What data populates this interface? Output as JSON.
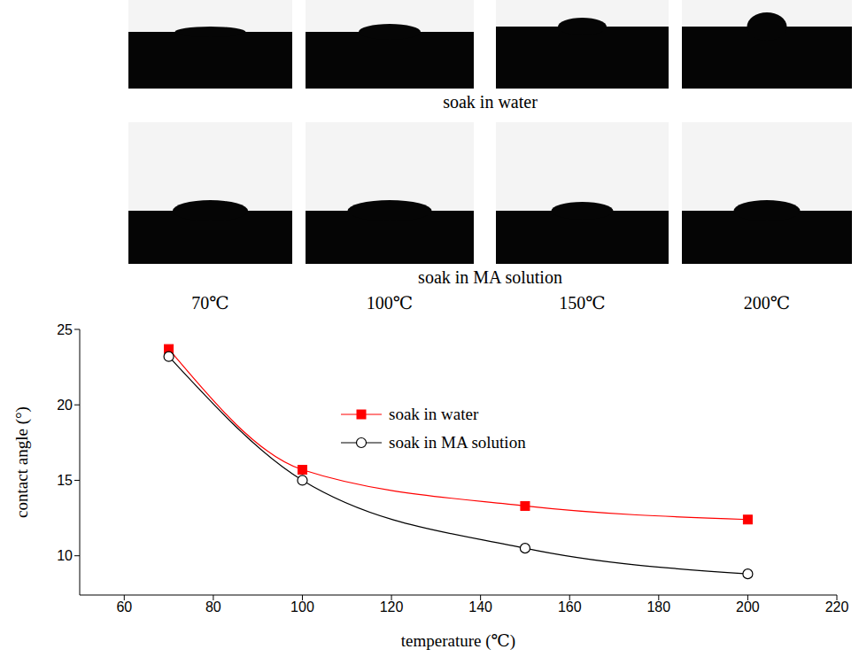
{
  "images": {
    "row_labels": [
      "soak in water",
      "soak in MA solution"
    ],
    "column_labels": [
      "70℃",
      "100℃",
      "150℃",
      "200℃"
    ]
  },
  "chart_data": {
    "type": "line",
    "x_label": "temperature (℃)",
    "y_label": "contact angle (°)",
    "x": [
      70,
      100,
      150,
      200
    ],
    "series": [
      {
        "name": "soak in water",
        "color": "#ff0000",
        "marker": "square",
        "line_style": "solid",
        "values": [
          23.7,
          15.7,
          13.3,
          12.4
        ]
      },
      {
        "name": "soak in MA solution",
        "color": "#000000",
        "marker": "circle",
        "line_style": "solid",
        "values": [
          23.2,
          15.0,
          10.5,
          8.8
        ]
      }
    ],
    "xlim": [
      50,
      220
    ],
    "xticks": [
      60,
      80,
      100,
      120,
      140,
      160,
      180,
      200,
      220
    ],
    "ylim": [
      7.4,
      25
    ],
    "yticks": [
      10,
      15,
      20,
      25
    ],
    "grid": false,
    "legend": "top"
  }
}
